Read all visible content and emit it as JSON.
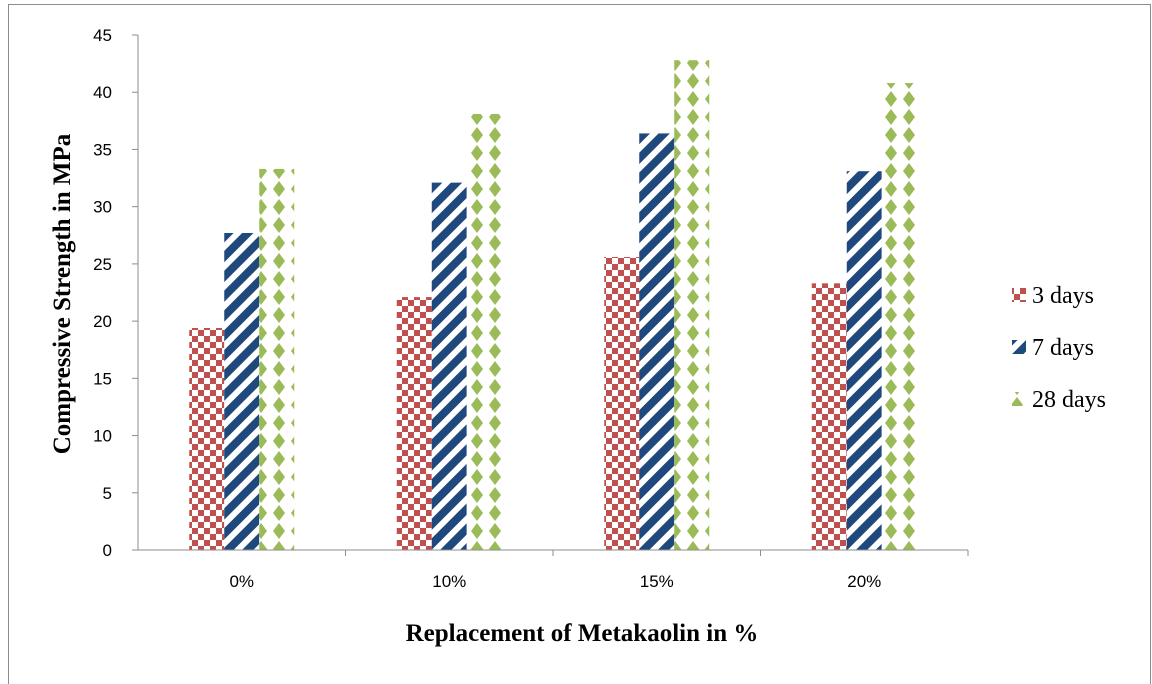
{
  "chart_data": {
    "type": "bar",
    "categories": [
      "0%",
      "10%",
      "15%",
      "20%"
    ],
    "series": [
      {
        "name": "3 days",
        "values": [
          19.4,
          22.1,
          25.6,
          23.3
        ],
        "color": "#c0504d",
        "pattern": "checker"
      },
      {
        "name": "7 days",
        "values": [
          27.7,
          32.1,
          36.4,
          33.1
        ],
        "color": "#1f497d",
        "pattern": "diagonal-stripes"
      },
      {
        "name": "28 days",
        "values": [
          33.3,
          38.1,
          42.8,
          40.8
        ],
        "color": "#9bbb59",
        "pattern": "diamonds"
      }
    ],
    "xlabel": "Replacement of Metakaolin in %",
    "ylabel": "Compressive Strength in MPa",
    "ylim": [
      0,
      45
    ],
    "yticks": [
      "0",
      "5",
      "10",
      "15",
      "20",
      "25",
      "30",
      "35",
      "40",
      "45"
    ],
    "grid": false,
    "legend_position": "right"
  }
}
